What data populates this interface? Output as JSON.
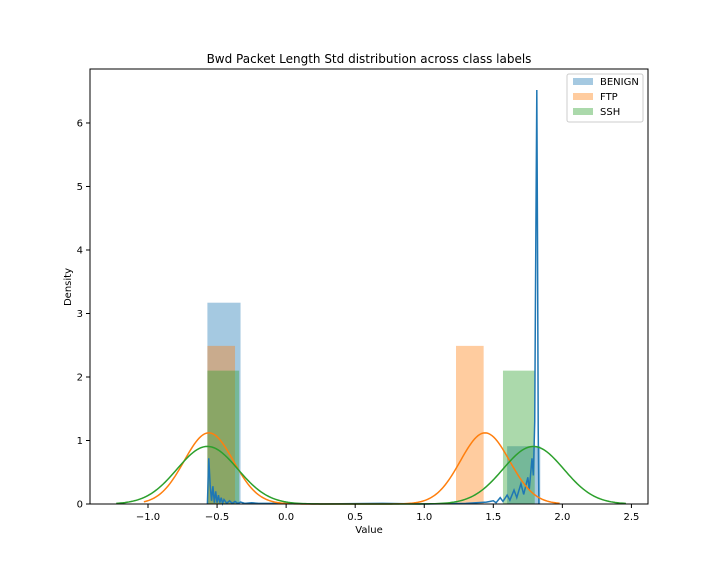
{
  "chart_data": {
    "type": "bar",
    "title": "Bwd Packet Length Std distribution across class labels",
    "xlabel": "Value",
    "ylabel": "Density",
    "xlim": [
      -1.42,
      2.62
    ],
    "ylim": [
      0,
      6.85
    ],
    "xticks": [
      -1.0,
      -0.5,
      0.0,
      0.5,
      1.0,
      1.5,
      2.0,
      2.5
    ],
    "xtick_labels": [
      "−1.0",
      "−0.5",
      "0.0",
      "0.5",
      "1.0",
      "1.5",
      "2.0",
      "2.5"
    ],
    "yticks": [
      0,
      1,
      2,
      3,
      4,
      5,
      6
    ],
    "ytick_labels": [
      "0",
      "1",
      "2",
      "3",
      "4",
      "5",
      "6"
    ],
    "grid": false,
    "legend_position": "top-right",
    "series": [
      {
        "name": "BENIGN",
        "color": "#1f77b4",
        "histogram": [
          {
            "x0": -0.57,
            "x1": -0.33,
            "density": 3.17
          },
          {
            "x0": 1.6,
            "x1": 1.84,
            "density": 0.91
          }
        ],
        "kde": [
          [
            -0.57,
            0.0
          ],
          [
            -0.56,
            0.72
          ],
          [
            -0.55,
            0.3
          ],
          [
            -0.54,
            0.05
          ],
          [
            -0.53,
            0.28
          ],
          [
            -0.52,
            0.02
          ],
          [
            -0.51,
            0.2
          ],
          [
            -0.5,
            0.02
          ],
          [
            -0.49,
            0.14
          ],
          [
            -0.48,
            0.02
          ],
          [
            -0.47,
            0.1
          ],
          [
            -0.46,
            0.01
          ],
          [
            -0.45,
            0.07
          ],
          [
            -0.43,
            0.01
          ],
          [
            -0.41,
            0.05
          ],
          [
            -0.39,
            0.01
          ],
          [
            -0.37,
            0.04
          ],
          [
            -0.35,
            0.01
          ],
          [
            -0.33,
            0.03
          ],
          [
            -0.3,
            0.01
          ],
          [
            -0.25,
            0.02
          ],
          [
            -0.2,
            0.01
          ],
          [
            -0.1,
            0.01
          ],
          [
            0.0,
            0.005
          ],
          [
            0.2,
            0.0
          ],
          [
            0.7,
            0.01
          ],
          [
            1.0,
            0.0
          ],
          [
            1.3,
            0.01
          ],
          [
            1.45,
            0.03
          ],
          [
            1.5,
            0.05
          ],
          [
            1.52,
            0.02
          ],
          [
            1.55,
            0.1
          ],
          [
            1.57,
            0.04
          ],
          [
            1.6,
            0.14
          ],
          [
            1.62,
            0.06
          ],
          [
            1.65,
            0.22
          ],
          [
            1.67,
            0.1
          ],
          [
            1.7,
            0.32
          ],
          [
            1.72,
            0.15
          ],
          [
            1.75,
            0.42
          ],
          [
            1.76,
            0.22
          ],
          [
            1.78,
            0.72
          ],
          [
            1.79,
            0.45
          ],
          [
            1.8,
            1.3
          ],
          [
            1.805,
            3.2
          ],
          [
            1.815,
            6.52
          ],
          [
            1.82,
            4.2
          ],
          [
            1.825,
            1.2
          ],
          [
            1.83,
            0.0
          ]
        ]
      },
      {
        "name": "FTP",
        "color": "#ff7f0e",
        "histogram": [
          {
            "x0": -0.57,
            "x1": -0.37,
            "density": 2.49
          },
          {
            "x0": 1.23,
            "x1": 1.43,
            "density": 2.49
          }
        ],
        "kde": {
          "components": [
            {
              "mean": -0.56,
              "sd": 0.178,
              "weight": 0.5
            },
            {
              "mean": 1.44,
              "sd": 0.178,
              "weight": 0.5
            }
          ],
          "range": [
            -1.03,
            1.98
          ]
        }
      },
      {
        "name": "SSH",
        "color": "#2ca02c",
        "histogram": [
          {
            "x0": -0.57,
            "x1": -0.34,
            "density": 2.1
          },
          {
            "x0": 1.57,
            "x1": 1.8,
            "density": 2.1
          }
        ],
        "kde": {
          "components": [
            {
              "mean": -0.57,
              "sd": 0.22,
              "weight": 0.5
            },
            {
              "mean": 1.79,
              "sd": 0.22,
              "weight": 0.5
            }
          ],
          "range": [
            -1.23,
            2.46
          ]
        }
      }
    ]
  }
}
